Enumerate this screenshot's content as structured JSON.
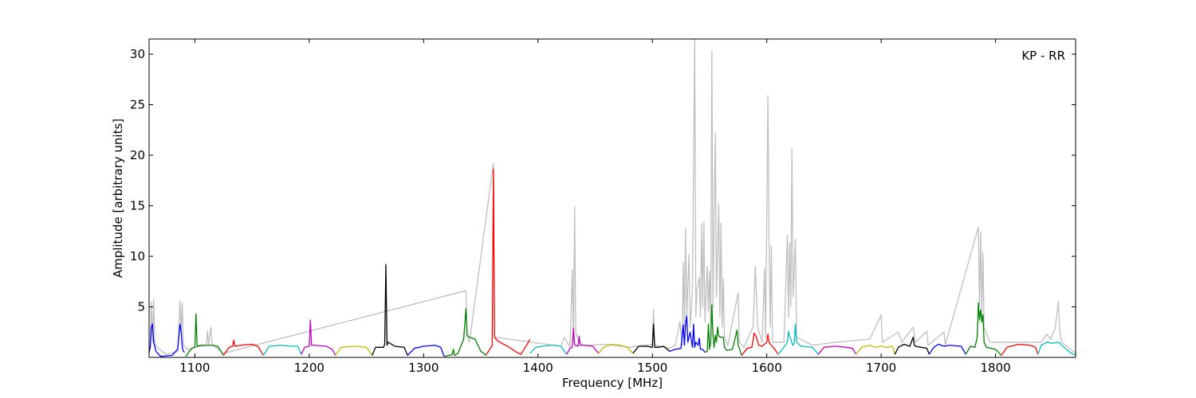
{
  "chart_data": {
    "type": "line",
    "title": "",
    "annotation": "KP - RR",
    "xlabel": "Frequency [MHz]",
    "ylabel": "Amplitude [arbitrary units]",
    "xlim": [
      1060,
      1870
    ],
    "ylim": [
      0,
      31.5
    ],
    "x_ticks": [
      1100,
      1200,
      1300,
      1400,
      1500,
      1600,
      1700,
      1800
    ],
    "y_ticks": [
      5,
      10,
      15,
      20,
      25,
      30
    ],
    "grid": false,
    "background_series": {
      "color": "#bfbfbf",
      "points": [
        [
          1060,
          0.4
        ],
        [
          1061,
          1.2
        ],
        [
          1062,
          5.5
        ],
        [
          1063,
          1.5
        ],
        [
          1064,
          5.8
        ],
        [
          1065,
          1.3
        ],
        [
          1068,
          0.9
        ],
        [
          1075,
          0.3
        ],
        [
          1085,
          0.6
        ],
        [
          1087,
          5.6
        ],
        [
          1088,
          2.5
        ],
        [
          1089,
          5.4
        ],
        [
          1090,
          1.2
        ],
        [
          1095,
          0.7
        ],
        [
          1100,
          1.0
        ],
        [
          1110,
          1.2
        ],
        [
          1111,
          2.6
        ],
        [
          1112,
          1.2
        ],
        [
          1114,
          3.0
        ],
        [
          1115,
          1.3
        ],
        [
          1125,
          0.4
        ],
        [
          1340,
          1.5
        ],
        [
          1337,
          6.6
        ],
        [
          1338,
          2.0
        ],
        [
          1361,
          19.2
        ],
        [
          1362,
          2.0
        ],
        [
          1420,
          1.1
        ],
        [
          1423,
          2.0
        ],
        [
          1428,
          1.0
        ],
        [
          1430,
          8.7
        ],
        [
          1431,
          1.5
        ],
        [
          1432,
          14.9
        ],
        [
          1433,
          2.5
        ],
        [
          1436,
          1.5
        ],
        [
          1440,
          1.2
        ],
        [
          1460,
          1.3
        ],
        [
          1480,
          1.0
        ],
        [
          1500,
          1.3
        ],
        [
          1501,
          4.7
        ],
        [
          1502,
          1.2
        ],
        [
          1515,
          0.9
        ],
        [
          1520,
          1.2
        ],
        [
          1524,
          3.5
        ],
        [
          1526,
          1.2
        ],
        [
          1527,
          9.4
        ],
        [
          1528,
          3.0
        ],
        [
          1529,
          12.7
        ],
        [
          1530,
          4.0
        ],
        [
          1532,
          10.2
        ],
        [
          1533,
          3.0
        ],
        [
          1535,
          6.5
        ],
        [
          1537,
          31.5
        ],
        [
          1538,
          4.0
        ],
        [
          1539,
          6.8
        ],
        [
          1541,
          7.9
        ],
        [
          1542,
          4.0
        ],
        [
          1543,
          13.2
        ],
        [
          1544,
          5.0
        ],
        [
          1545,
          13.4
        ],
        [
          1546,
          3.5
        ],
        [
          1548,
          9.0
        ],
        [
          1549,
          4.5
        ],
        [
          1550,
          8.5
        ],
        [
          1551,
          3.0
        ],
        [
          1552,
          30.3
        ],
        [
          1553,
          5.0
        ],
        [
          1555,
          22.2
        ],
        [
          1556,
          6.0
        ],
        [
          1558,
          15.2
        ],
        [
          1559,
          4.0
        ],
        [
          1560,
          13.3
        ],
        [
          1561,
          3.0
        ],
        [
          1562,
          7.8
        ],
        [
          1563,
          2.0
        ],
        [
          1566,
          1.2
        ],
        [
          1575,
          6.4
        ],
        [
          1576,
          1.5
        ],
        [
          1580,
          1.0
        ],
        [
          1588,
          3.0
        ],
        [
          1590,
          9.0
        ],
        [
          1592,
          3.0
        ],
        [
          1596,
          1.5
        ],
        [
          1598,
          8.8
        ],
        [
          1599,
          2.0
        ],
        [
          1601,
          25.9
        ],
        [
          1602,
          11.4
        ],
        [
          1603,
          3.0
        ],
        [
          1604,
          11.0
        ],
        [
          1605,
          1.5
        ],
        [
          1615,
          1.5
        ],
        [
          1618,
          12.1
        ],
        [
          1619,
          4.0
        ],
        [
          1620,
          11.3
        ],
        [
          1621,
          5.0
        ],
        [
          1622,
          20.6
        ],
        [
          1623,
          6.0
        ],
        [
          1625,
          11.7
        ],
        [
          1626,
          2.0
        ],
        [
          1640,
          1.2
        ],
        [
          1660,
          1.5
        ],
        [
          1690,
          1.8
        ],
        [
          1700,
          4.2
        ],
        [
          1701,
          1.5
        ],
        [
          1715,
          2.5
        ],
        [
          1718,
          1.5
        ],
        [
          1728,
          3.0
        ],
        [
          1730,
          1.5
        ],
        [
          1740,
          2.6
        ],
        [
          1741,
          1.2
        ],
        [
          1755,
          2.5
        ],
        [
          1756,
          1.2
        ],
        [
          1785,
          12.9
        ],
        [
          1786,
          5.0
        ],
        [
          1787,
          12.4
        ],
        [
          1788,
          4.0
        ],
        [
          1789,
          10.4
        ],
        [
          1790,
          3.0
        ],
        [
          1795,
          1.5
        ],
        [
          1840,
          1.5
        ],
        [
          1845,
          2.3
        ],
        [
          1848,
          1.8
        ],
        [
          1852,
          2.8
        ],
        [
          1855,
          5.5
        ],
        [
          1856,
          2.6
        ],
        [
          1858,
          1.5
        ],
        [
          1870,
          0.4
        ]
      ]
    },
    "series": [
      {
        "color": "#0000ff",
        "x": [
          1060,
          1061,
          1062,
          1063,
          1064,
          1066,
          1070,
          1080,
          1085,
          1087,
          1088,
          1089,
          1090,
          1091
        ],
        "y": [
          0.5,
          1.0,
          3.0,
          3.3,
          1.5,
          0.6,
          0.1,
          0.2,
          0.8,
          3.3,
          2.6,
          1.0,
          0.6,
          0.5
        ]
      },
      {
        "color": "#008000",
        "x": [
          1092,
          1097,
          1100,
          1101,
          1102,
          1105,
          1110,
          1115,
          1120,
          1125
        ],
        "y": [
          0.1,
          0.9,
          1.0,
          4.3,
          1.1,
          1.2,
          1.2,
          1.2,
          1.1,
          0.2
        ]
      },
      {
        "color": "#ff0000",
        "x": [
          1125,
          1130,
          1133,
          1134,
          1135,
          1140,
          1150,
          1155,
          1160
        ],
        "y": [
          0.2,
          1.0,
          1.1,
          1.7,
          1.1,
          1.2,
          1.3,
          1.1,
          0.2
        ]
      },
      {
        "color": "#00bfbf",
        "x": [
          1160,
          1165,
          1175,
          1185,
          1190,
          1193
        ],
        "y": [
          0.2,
          1.1,
          1.2,
          1.1,
          1.1,
          0.3
        ]
      },
      {
        "color": "#bf00bf",
        "x": [
          1193,
          1196,
          1200,
          1201,
          1202,
          1205,
          1215,
          1220,
          1223
        ],
        "y": [
          0.3,
          1.0,
          1.1,
          3.7,
          1.2,
          1.2,
          1.1,
          0.8,
          0.2
        ]
      },
      {
        "color": "#bfbf00",
        "x": [
          1223,
          1228,
          1240,
          1250,
          1255
        ],
        "y": [
          0.2,
          1.0,
          1.1,
          1.0,
          0.2
        ]
      },
      {
        "color": "#000000",
        "x": [
          1255,
          1258,
          1265,
          1266,
          1267,
          1268,
          1269,
          1275,
          1283,
          1286
        ],
        "y": [
          0.2,
          1.0,
          1.0,
          1.3,
          9.2,
          1.2,
          1.5,
          1.1,
          1.0,
          0.2
        ]
      },
      {
        "color": "#0000ff",
        "x": [
          1286,
          1292,
          1300,
          1310,
          1315,
          1318
        ],
        "y": [
          0.2,
          0.9,
          1.1,
          1.2,
          1.0,
          0.1
        ]
      },
      {
        "color": "#008000",
        "x": [
          1318,
          1322,
          1325,
          1326,
          1327,
          1330,
          1335,
          1337,
          1338,
          1340,
          1345,
          1350,
          1355
        ],
        "y": [
          0.1,
          0.2,
          0.3,
          0.8,
          0.2,
          0.4,
          1.8,
          4.8,
          2.2,
          2.0,
          1.8,
          0.6,
          0.2
        ]
      },
      {
        "color": "#ff0000",
        "x": [
          1355,
          1359,
          1360,
          1361,
          1362,
          1365,
          1370,
          1375,
          1380,
          1385,
          1390,
          1393
        ],
        "y": [
          0.3,
          1.0,
          1.2,
          18.6,
          2.0,
          1.6,
          1.3,
          1.0,
          0.6,
          0.3,
          1.2,
          1.8
        ]
      },
      {
        "color": "#00bfbf",
        "x": [
          1393,
          1398,
          1405,
          1410,
          1415,
          1420,
          1422,
          1425
        ],
        "y": [
          0.4,
          1.0,
          1.1,
          1.2,
          1.2,
          1.1,
          0.8,
          0.3
        ]
      },
      {
        "color": "#bf00bf",
        "x": [
          1425,
          1428,
          1430,
          1431,
          1432,
          1433,
          1435,
          1436,
          1437,
          1440,
          1448,
          1453
        ],
        "y": [
          0.3,
          0.9,
          1.0,
          2.9,
          1.3,
          1.2,
          1.1,
          2.1,
          1.2,
          1.2,
          1.1,
          0.4
        ]
      },
      {
        "color": "#bfbf00",
        "x": [
          1453,
          1457,
          1465,
          1472,
          1478,
          1483
        ],
        "y": [
          0.4,
          1.0,
          1.3,
          1.2,
          1.0,
          0.4
        ]
      },
      {
        "color": "#000000",
        "x": [
          1483,
          1488,
          1495,
          1500,
          1501,
          1502,
          1505,
          1510,
          1515
        ],
        "y": [
          0.4,
          1.1,
          1.1,
          1.0,
          3.3,
          1.0,
          1.0,
          1.1,
          0.6
        ]
      },
      {
        "color": "#0000ff",
        "x": [
          1515,
          1520,
          1525,
          1527,
          1528,
          1529,
          1530,
          1531,
          1533,
          1535,
          1536,
          1537,
          1538,
          1540,
          1541,
          1542,
          1544,
          1546
        ],
        "y": [
          0.6,
          0.8,
          0.9,
          3.2,
          1.2,
          3.3,
          4.1,
          1.5,
          2.5,
          1.0,
          3.3,
          1.0,
          1.5,
          1.2,
          1.9,
          0.8,
          0.8,
          0.5
        ]
      },
      {
        "color": "#008000",
        "x": [
          1546,
          1548,
          1549,
          1550,
          1551,
          1552,
          1553,
          1554,
          1555,
          1556,
          1557,
          1558,
          1560,
          1562,
          1563,
          1565,
          1570,
          1574,
          1575,
          1576,
          1578
        ],
        "y": [
          0.5,
          0.6,
          3.3,
          0.8,
          1.5,
          5.2,
          2.1,
          1.0,
          2.2,
          1.5,
          3.0,
          2.1,
          2.0,
          2.0,
          1.0,
          0.7,
          0.8,
          2.7,
          1.2,
          0.9,
          0.2
        ]
      },
      {
        "color": "#ff0000",
        "x": [
          1578,
          1583,
          1587,
          1589,
          1591,
          1593,
          1596,
          1600,
          1601,
          1602,
          1604,
          1607,
          1610
        ],
        "y": [
          0.2,
          0.9,
          1.0,
          2.4,
          2.0,
          1.2,
          1.1,
          1.5,
          2.3,
          1.5,
          1.2,
          0.8,
          0.3
        ]
      },
      {
        "color": "#00bfbf",
        "x": [
          1610,
          1615,
          1618,
          1619,
          1620,
          1621,
          1622,
          1623,
          1624,
          1625,
          1626,
          1630,
          1640,
          1645
        ],
        "y": [
          0.3,
          1.0,
          1.5,
          2.6,
          2.1,
          1.8,
          1.4,
          1.2,
          1.5,
          3.3,
          1.5,
          1.1,
          1.0,
          0.3
        ]
      },
      {
        "color": "#bf00bf",
        "x": [
          1645,
          1650,
          1660,
          1670,
          1675,
          1678
        ],
        "y": [
          0.3,
          1.0,
          1.1,
          1.0,
          0.9,
          0.3
        ]
      },
      {
        "color": "#bfbf00",
        "x": [
          1678,
          1683,
          1690,
          1695,
          1700,
          1705,
          1710,
          1712
        ],
        "y": [
          0.3,
          1.0,
          1.2,
          1.0,
          1.1,
          1.0,
          1.1,
          0.3
        ]
      },
      {
        "color": "#000000",
        "x": [
          1712,
          1715,
          1720,
          1725,
          1728,
          1729,
          1730,
          1735,
          1740,
          1742
        ],
        "y": [
          0.3,
          1.0,
          1.3,
          1.1,
          2.0,
          1.2,
          1.1,
          1.0,
          0.9,
          0.3
        ]
      },
      {
        "color": "#0000ff",
        "x": [
          1742,
          1746,
          1750,
          1755,
          1760,
          1770,
          1774
        ],
        "y": [
          0.3,
          1.0,
          1.3,
          1.1,
          1.2,
          1.1,
          0.3
        ]
      },
      {
        "color": "#008000",
        "x": [
          1774,
          1778,
          1782,
          1784,
          1785,
          1786,
          1787,
          1788,
          1789,
          1790,
          1792,
          1800,
          1805
        ],
        "y": [
          0.3,
          1.1,
          1.0,
          2.0,
          5.4,
          3.7,
          4.7,
          3.5,
          4.2,
          1.5,
          1.0,
          0.8,
          0.2
        ]
      },
      {
        "color": "#ff0000",
        "x": [
          1805,
          1810,
          1820,
          1830,
          1835,
          1837
        ],
        "y": [
          0.2,
          1.0,
          1.3,
          1.2,
          1.0,
          0.3
        ]
      },
      {
        "color": "#00bfbf",
        "x": [
          1837,
          1840,
          1845,
          1850,
          1855,
          1860,
          1865,
          1870
        ],
        "y": [
          0.3,
          1.2,
          1.5,
          1.4,
          1.5,
          1.0,
          0.5,
          0.2
        ]
      }
    ]
  }
}
